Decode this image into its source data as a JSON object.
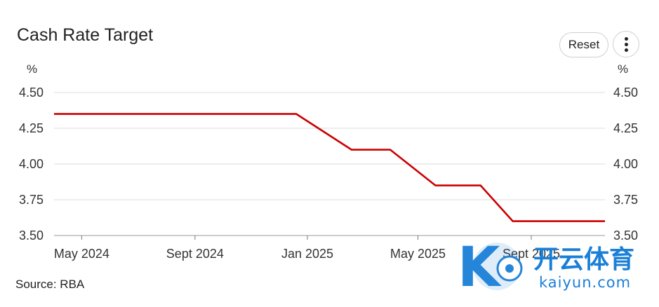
{
  "header": {
    "title": "Cash Rate Target",
    "reset_label": "Reset",
    "menu_icon": "more-vert-icon"
  },
  "footer": {
    "source": "Source: RBA"
  },
  "watermark": {
    "brand_cn": "开云体育",
    "brand_en": "kaiyun.com"
  },
  "colors": {
    "line": "#cc0000",
    "grid": "#dddddd",
    "watermark_blue": "#1a7fd6"
  },
  "chart_data": {
    "type": "line",
    "title": "Cash Rate Target",
    "left_unit": "%",
    "right_unit": "%",
    "y_ticks": [
      "4.50",
      "4.25",
      "4.00",
      "3.75",
      "3.50"
    ],
    "ylim": [
      3.5,
      4.5
    ],
    "x_ticks": [
      "May 2024",
      "Sept 2024",
      "Jan 2025",
      "May 2025",
      "Sept 2025"
    ],
    "x_tick_dates": [
      "2024-05-01",
      "2024-09-01",
      "2025-01-01",
      "2025-05-01",
      "2025-09-01"
    ],
    "xlim": [
      "2024-04-01",
      "2025-11-20"
    ],
    "grid": true,
    "series": [
      {
        "x": [
          "2024-04-01",
          "2024-12-20",
          "2025-02-18",
          "2025-04-01",
          "2025-05-20",
          "2025-07-08",
          "2025-08-12",
          "2025-11-20"
        ],
        "y": [
          4.35,
          4.35,
          4.1,
          4.1,
          3.85,
          3.85,
          3.6,
          3.6
        ]
      }
    ],
    "source": "Source: RBA"
  }
}
